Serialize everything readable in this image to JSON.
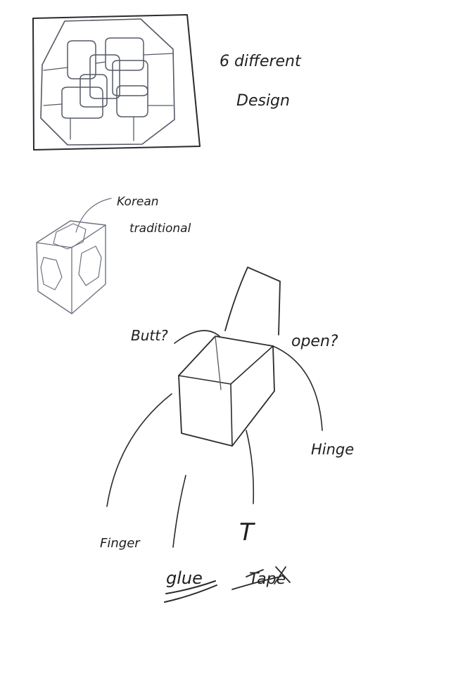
{
  "notes": {
    "different_design": "6 different Design",
    "korean_traditional": "Korean traditional",
    "butt": "Butt?",
    "open": "open?",
    "hinge": "Hinge",
    "finger": "Finger",
    "t_joint": "T",
    "glue": "glue",
    "tape": "Tape"
  },
  "colors": {
    "ink": "#2b2b2b",
    "pencil": "#6e7280",
    "paper": "#ffffff"
  }
}
